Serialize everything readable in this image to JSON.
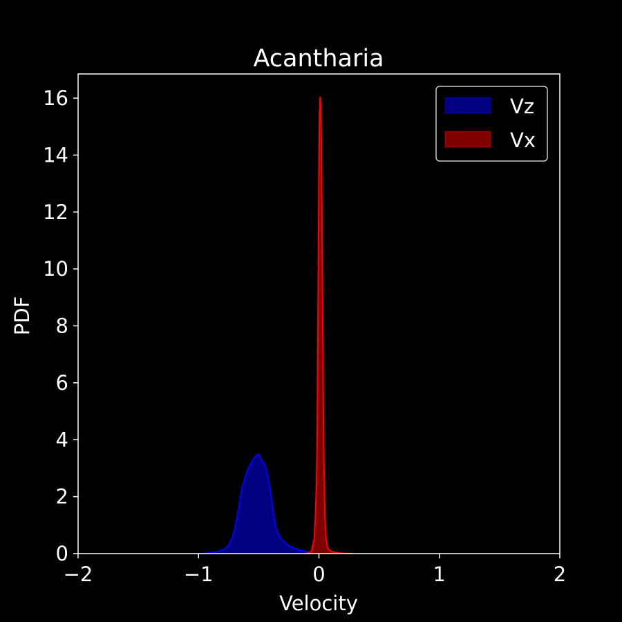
{
  "chart_data": {
    "type": "histogram",
    "title": "Acantharia",
    "xlabel": "Velocity",
    "ylabel": "PDF",
    "xlim": [
      -2,
      2
    ],
    "ylim": [
      0,
      16.85
    ],
    "xticks": [
      -2,
      -1,
      0,
      1,
      2
    ],
    "xtick_labels": [
      "−2",
      "−1",
      "0",
      "1",
      "2"
    ],
    "yticks": [
      0,
      2,
      4,
      6,
      8,
      10,
      12,
      14,
      16
    ],
    "ytick_labels": [
      "0",
      "2",
      "4",
      "6",
      "8",
      "10",
      "12",
      "14",
      "16"
    ],
    "legend_position": "top-right",
    "series": [
      {
        "name": "Vz",
        "fill_color": "#000080",
        "line_color": "#0000ff",
        "x": [
          -1.0,
          -0.95,
          -0.9,
          -0.85,
          -0.8,
          -0.78,
          -0.76,
          -0.74,
          -0.72,
          -0.7,
          -0.68,
          -0.66,
          -0.64,
          -0.62,
          -0.6,
          -0.58,
          -0.56,
          -0.54,
          -0.52,
          -0.5,
          -0.49,
          -0.48,
          -0.46,
          -0.44,
          -0.42,
          -0.4,
          -0.38,
          -0.36,
          -0.34,
          -0.32,
          -0.3,
          -0.28,
          -0.26,
          -0.24,
          -0.22,
          -0.2,
          -0.18,
          -0.16,
          -0.14,
          -0.12,
          -0.1,
          -0.08,
          -0.06,
          -0.04,
          -0.02,
          0.0
        ],
        "y": [
          0.0,
          0.01,
          0.03,
          0.06,
          0.12,
          0.17,
          0.25,
          0.36,
          0.55,
          0.85,
          1.25,
          1.75,
          2.3,
          2.55,
          2.85,
          3.05,
          3.2,
          3.35,
          3.45,
          3.5,
          3.42,
          3.3,
          3.2,
          3.0,
          2.6,
          2.1,
          1.5,
          0.95,
          0.72,
          0.55,
          0.45,
          0.38,
          0.3,
          0.26,
          0.22,
          0.18,
          0.15,
          0.12,
          0.1,
          0.08,
          0.06,
          0.05,
          0.04,
          0.03,
          0.02,
          0.0
        ]
      },
      {
        "name": "Vx",
        "fill_color": "#800000",
        "line_color": "#ff0000",
        "x": [
          -0.12,
          -0.08,
          -0.06,
          -0.04,
          -0.03,
          -0.02,
          -0.015,
          -0.01,
          -0.005,
          0.0,
          0.005,
          0.01,
          0.015,
          0.02,
          0.025,
          0.03,
          0.035,
          0.04,
          0.05,
          0.06,
          0.07,
          0.08,
          0.1,
          0.13,
          0.17,
          0.21,
          0.25,
          0.28
        ],
        "y": [
          0.0,
          0.02,
          0.1,
          0.5,
          1.2,
          2.5,
          4.0,
          6.5,
          10.0,
          13.5,
          15.5,
          16.05,
          15.8,
          14.5,
          12.0,
          9.0,
          6.0,
          3.6,
          1.3,
          0.5,
          0.25,
          0.15,
          0.08,
          0.04,
          0.02,
          0.01,
          0.005,
          0.0
        ]
      }
    ]
  }
}
